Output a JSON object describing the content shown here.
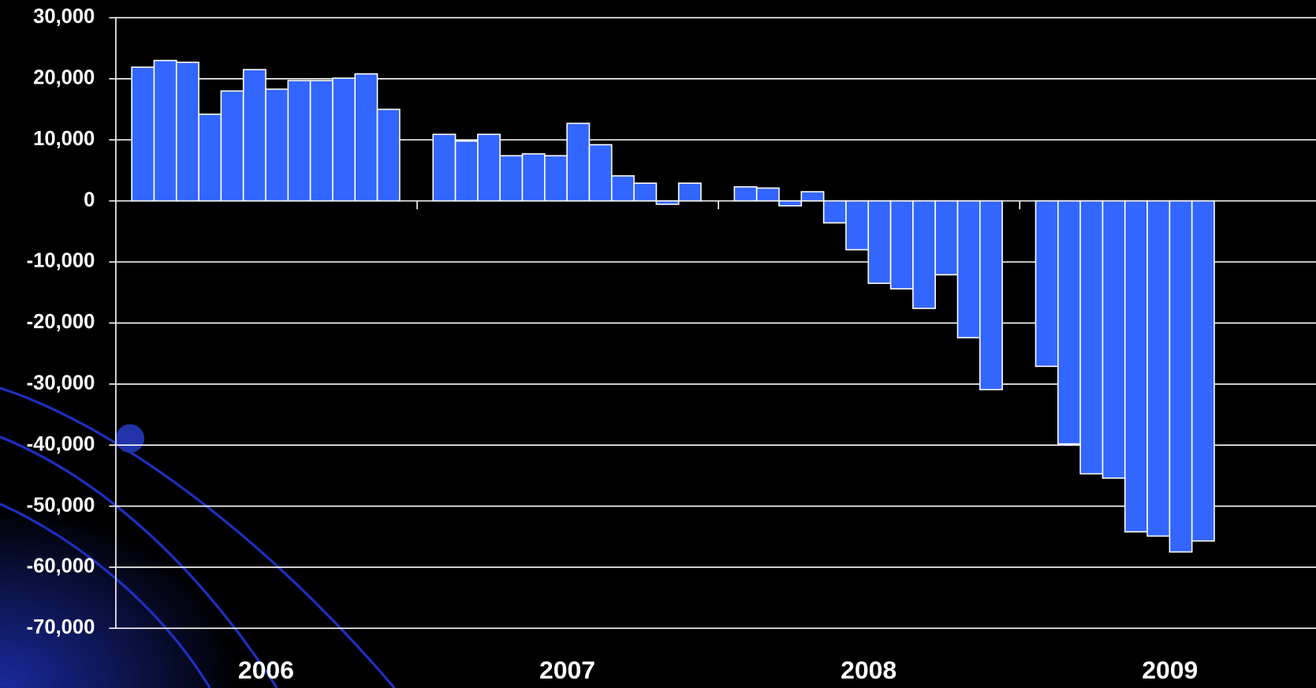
{
  "chart_data": {
    "type": "bar",
    "categories": [
      "2006",
      "2007",
      "2008",
      "2009"
    ],
    "values": [
      [
        21900,
        23000,
        22700,
        14200,
        18000,
        21500,
        18300,
        19700,
        19700,
        20100,
        20800,
        15000
      ],
      [
        10900,
        9800,
        10900,
        7400,
        7700,
        7400,
        12700,
        9200,
        4100,
        2900,
        -550,
        2900
      ],
      [
        2300,
        2100,
        -800,
        1500,
        -3600,
        -8000,
        -13500,
        -14400,
        -17600,
        -12100,
        -22400,
        -30900
      ],
      [
        -27100,
        -39800,
        -44700,
        -45400,
        -54200,
        -54900,
        -57500,
        -55700
      ]
    ],
    "color": "#3366ff",
    "ylim": [
      -70000,
      30000
    ],
    "yticks": [
      {
        "value": 30000,
        "label": "30,000"
      },
      {
        "value": 20000,
        "label": "20,000"
      },
      {
        "value": 10000,
        "label": "10,000"
      },
      0,
      {
        "value": -10000,
        "label": "-10,000"
      },
      {
        "value": -20000,
        "label": "-20,000"
      },
      {
        "value": -30000,
        "label": "-30,000"
      },
      {
        "value": -40000,
        "label": "-40,000"
      },
      {
        "value": -50000,
        "label": "-50,000"
      },
      {
        "value": -60000,
        "label": "-60,000"
      },
      {
        "value": -70000,
        "label": "-70,000"
      }
    ],
    "grid": true
  }
}
